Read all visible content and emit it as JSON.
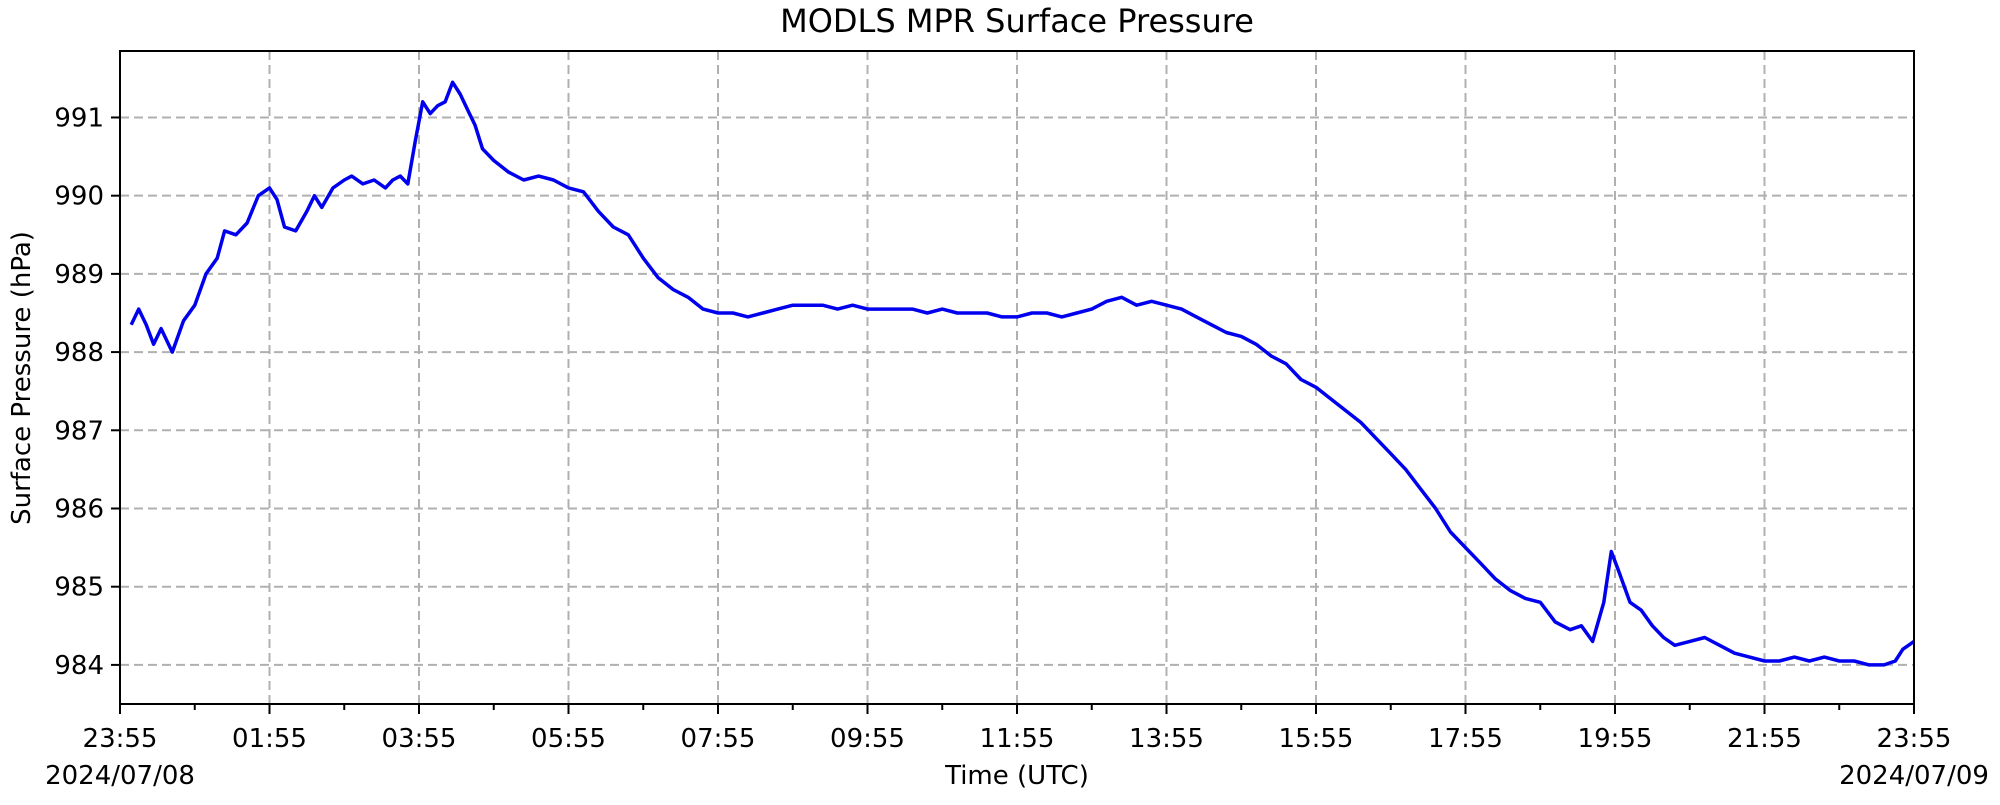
{
  "chart_data": {
    "type": "line",
    "title": "MODLS MPR Surface Pressure",
    "xlabel": "Time (UTC)",
    "ylabel": "Surface Pressure (hPa)",
    "x_tick_labels": [
      "23:55",
      "01:55",
      "03:55",
      "05:55",
      "07:55",
      "09:55",
      "11:55",
      "13:55",
      "15:55",
      "17:55",
      "19:55",
      "21:55",
      "23:55"
    ],
    "y_ticks": [
      984,
      985,
      986,
      987,
      988,
      989,
      990,
      991
    ],
    "start_date": "2024/07/08",
    "end_date": "2024/07/09",
    "x_unit": "hours since 2024/07/08 23:55 UTC",
    "xlim": [
      0,
      24
    ],
    "ylim": [
      983.5,
      991.85
    ],
    "grid": true,
    "line_color": "#0000ee",
    "grid_color": "#b0b0b0",
    "series": [
      {
        "name": "",
        "points": [
          [
            0.15,
            988.35
          ],
          [
            0.25,
            988.55
          ],
          [
            0.35,
            988.35
          ],
          [
            0.45,
            988.1
          ],
          [
            0.55,
            988.3
          ],
          [
            0.7,
            988.0
          ],
          [
            0.85,
            988.4
          ],
          [
            1.0,
            988.6
          ],
          [
            1.15,
            989.0
          ],
          [
            1.3,
            989.2
          ],
          [
            1.4,
            989.55
          ],
          [
            1.55,
            989.5
          ],
          [
            1.7,
            989.65
          ],
          [
            1.85,
            990.0
          ],
          [
            2.0,
            990.1
          ],
          [
            2.1,
            989.95
          ],
          [
            2.2,
            989.6
          ],
          [
            2.35,
            989.55
          ],
          [
            2.5,
            989.8
          ],
          [
            2.6,
            990.0
          ],
          [
            2.7,
            989.85
          ],
          [
            2.85,
            990.1
          ],
          [
            3.0,
            990.2
          ],
          [
            3.1,
            990.25
          ],
          [
            3.25,
            990.15
          ],
          [
            3.4,
            990.2
          ],
          [
            3.55,
            990.1
          ],
          [
            3.65,
            990.2
          ],
          [
            3.75,
            990.25
          ],
          [
            3.85,
            990.15
          ],
          [
            3.95,
            990.7
          ],
          [
            4.05,
            991.2
          ],
          [
            4.15,
            991.05
          ],
          [
            4.25,
            991.15
          ],
          [
            4.35,
            991.2
          ],
          [
            4.45,
            991.45
          ],
          [
            4.55,
            991.3
          ],
          [
            4.65,
            991.1
          ],
          [
            4.75,
            990.9
          ],
          [
            4.85,
            990.6
          ],
          [
            5.0,
            990.45
          ],
          [
            5.2,
            990.3
          ],
          [
            5.4,
            990.2
          ],
          [
            5.6,
            990.25
          ],
          [
            5.8,
            990.2
          ],
          [
            6.0,
            990.1
          ],
          [
            6.2,
            990.05
          ],
          [
            6.4,
            989.8
          ],
          [
            6.6,
            989.6
          ],
          [
            6.8,
            989.5
          ],
          [
            7.0,
            989.2
          ],
          [
            7.2,
            988.95
          ],
          [
            7.4,
            988.8
          ],
          [
            7.6,
            988.7
          ],
          [
            7.8,
            988.55
          ],
          [
            8.0,
            988.5
          ],
          [
            8.2,
            988.5
          ],
          [
            8.4,
            988.45
          ],
          [
            8.6,
            988.5
          ],
          [
            8.8,
            988.55
          ],
          [
            9.0,
            988.6
          ],
          [
            9.2,
            988.6
          ],
          [
            9.4,
            988.6
          ],
          [
            9.6,
            988.55
          ],
          [
            9.8,
            988.6
          ],
          [
            10.0,
            988.55
          ],
          [
            10.2,
            988.55
          ],
          [
            10.4,
            988.55
          ],
          [
            10.6,
            988.55
          ],
          [
            10.8,
            988.5
          ],
          [
            11.0,
            988.55
          ],
          [
            11.2,
            988.5
          ],
          [
            11.4,
            988.5
          ],
          [
            11.6,
            988.5
          ],
          [
            11.8,
            988.45
          ],
          [
            12.0,
            988.45
          ],
          [
            12.2,
            988.5
          ],
          [
            12.4,
            988.5
          ],
          [
            12.6,
            988.45
          ],
          [
            12.8,
            988.5
          ],
          [
            13.0,
            988.55
          ],
          [
            13.2,
            988.65
          ],
          [
            13.4,
            988.7
          ],
          [
            13.6,
            988.6
          ],
          [
            13.8,
            988.65
          ],
          [
            14.0,
            988.6
          ],
          [
            14.2,
            988.55
          ],
          [
            14.4,
            988.45
          ],
          [
            14.6,
            988.35
          ],
          [
            14.8,
            988.25
          ],
          [
            15.0,
            988.2
          ],
          [
            15.2,
            988.1
          ],
          [
            15.4,
            987.95
          ],
          [
            15.6,
            987.85
          ],
          [
            15.8,
            987.65
          ],
          [
            16.0,
            987.55
          ],
          [
            16.2,
            987.4
          ],
          [
            16.4,
            987.25
          ],
          [
            16.6,
            987.1
          ],
          [
            16.8,
            986.9
          ],
          [
            17.0,
            986.7
          ],
          [
            17.2,
            986.5
          ],
          [
            17.4,
            986.25
          ],
          [
            17.6,
            986.0
          ],
          [
            17.8,
            985.7
          ],
          [
            18.0,
            985.5
          ],
          [
            18.2,
            985.3
          ],
          [
            18.4,
            985.1
          ],
          [
            18.6,
            984.95
          ],
          [
            18.8,
            984.85
          ],
          [
            19.0,
            984.8
          ],
          [
            19.2,
            984.55
          ],
          [
            19.4,
            984.45
          ],
          [
            19.55,
            984.5
          ],
          [
            19.7,
            984.3
          ],
          [
            19.85,
            984.8
          ],
          [
            19.95,
            985.45
          ],
          [
            20.05,
            985.2
          ],
          [
            20.2,
            984.8
          ],
          [
            20.35,
            984.7
          ],
          [
            20.5,
            984.5
          ],
          [
            20.65,
            984.35
          ],
          [
            20.8,
            984.25
          ],
          [
            21.0,
            984.3
          ],
          [
            21.2,
            984.35
          ],
          [
            21.4,
            984.25
          ],
          [
            21.6,
            984.15
          ],
          [
            21.8,
            984.1
          ],
          [
            22.0,
            984.05
          ],
          [
            22.2,
            984.05
          ],
          [
            22.4,
            984.1
          ],
          [
            22.6,
            984.05
          ],
          [
            22.8,
            984.1
          ],
          [
            23.0,
            984.05
          ],
          [
            23.2,
            984.05
          ],
          [
            23.4,
            984.0
          ],
          [
            23.6,
            984.0
          ],
          [
            23.75,
            984.05
          ],
          [
            23.85,
            984.2
          ],
          [
            24.0,
            984.3
          ]
        ]
      }
    ]
  }
}
